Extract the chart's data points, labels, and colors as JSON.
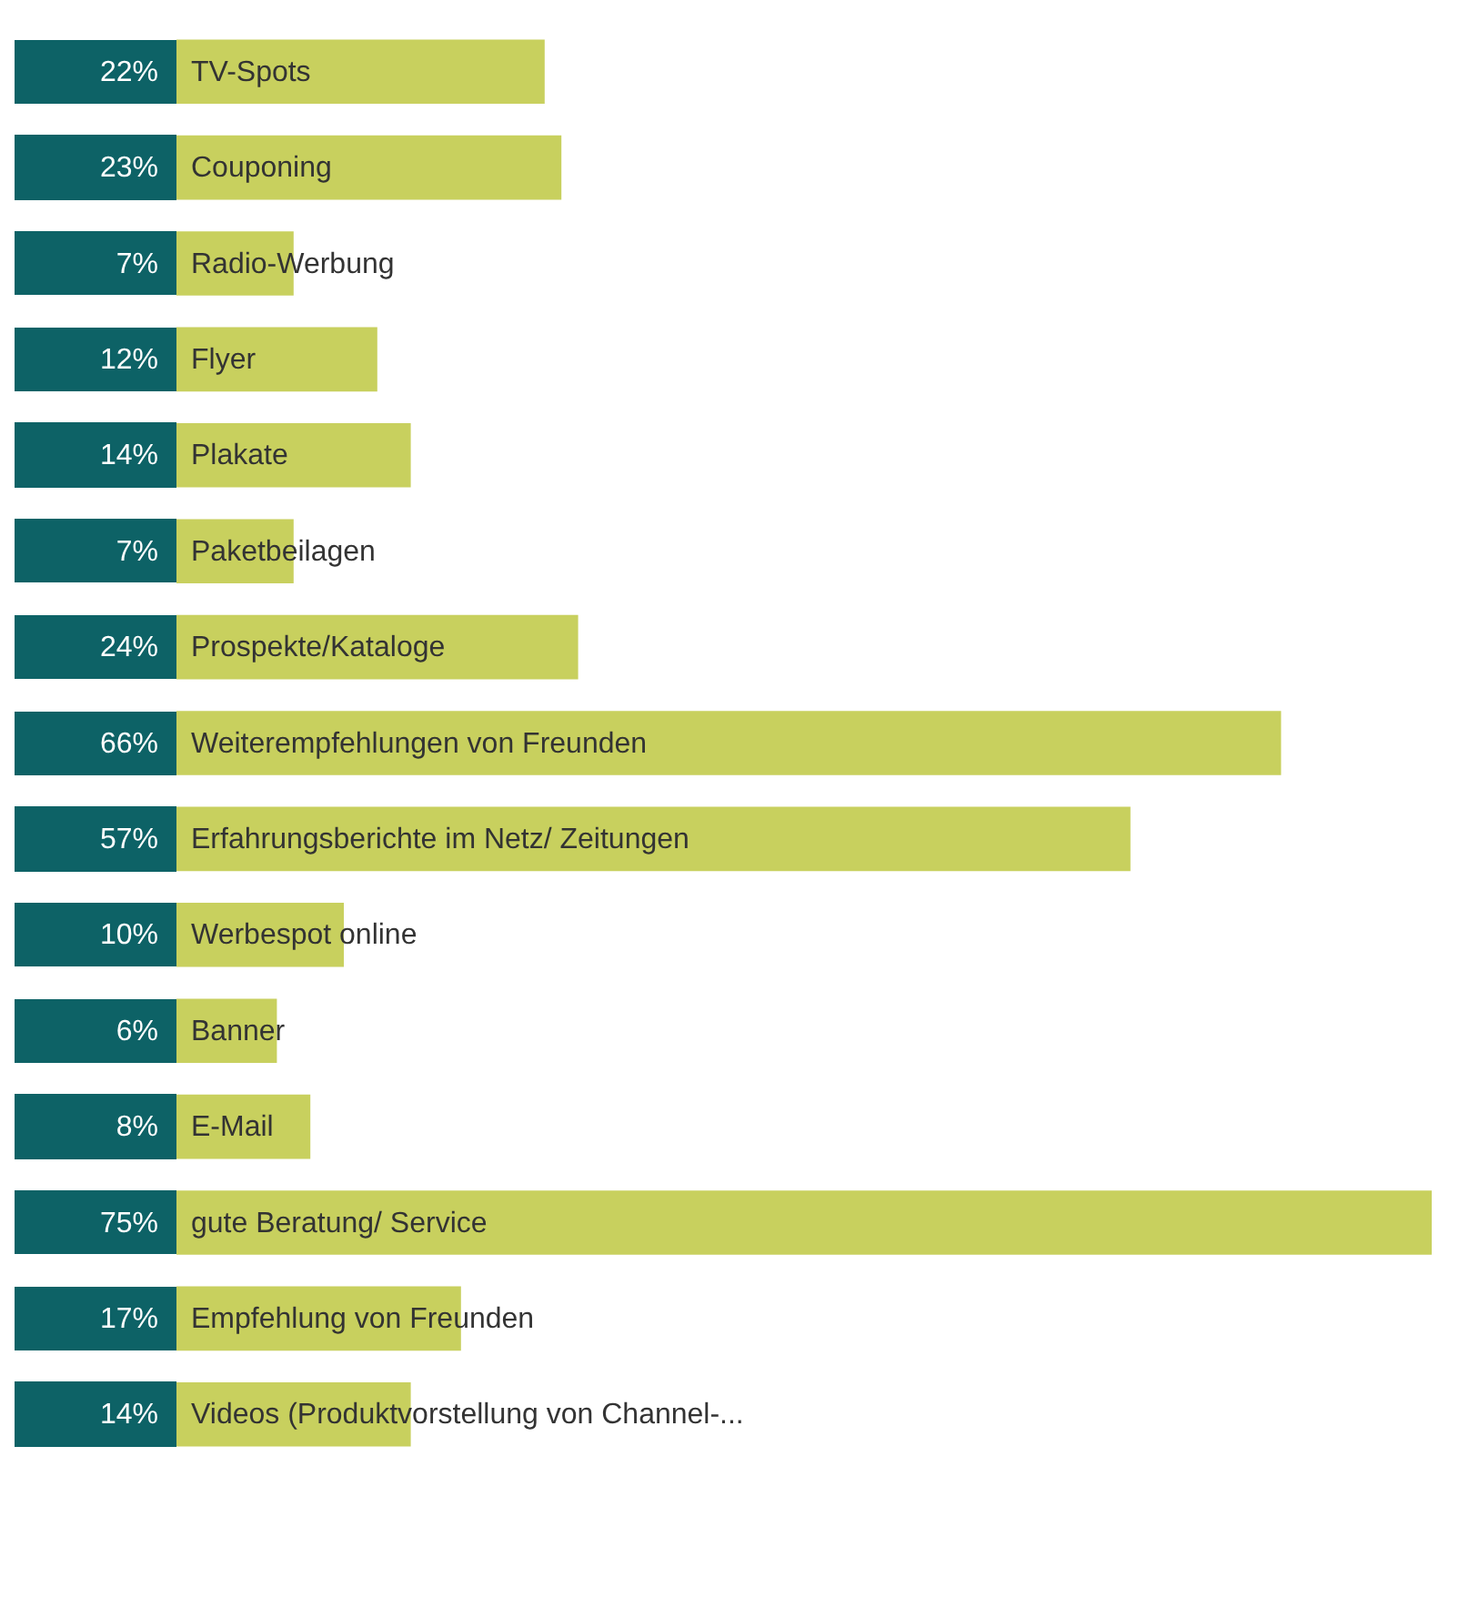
{
  "chart_data": {
    "type": "bar",
    "orientation": "horizontal",
    "categories": [
      "TV-Spots",
      "Couponing",
      "Radio-Werbung",
      "Flyer",
      "Plakate",
      "Paketbeilagen",
      "Prospekte/Kataloge",
      "Weiterempfehlungen von Freunden",
      "Erfahrungsberichte im Netz/ Zeitungen",
      "Werbespot online",
      "Banner",
      "E-Mail",
      "gute Beratung/ Service",
      "Empfehlung von Freunden",
      "Videos (Produktvorstellung von Channel-..."
    ],
    "values": [
      22,
      23,
      7,
      12,
      14,
      7,
      24,
      66,
      57,
      10,
      6,
      8,
      75,
      17,
      14
    ],
    "value_labels": [
      "22%",
      "23%",
      "7%",
      "12%",
      "14%",
      "7%",
      "24%",
      "66%",
      "57%",
      "10%",
      "6%",
      "8%",
      "75%",
      "17%",
      "14%"
    ],
    "color": "#c8d05e"
  }
}
